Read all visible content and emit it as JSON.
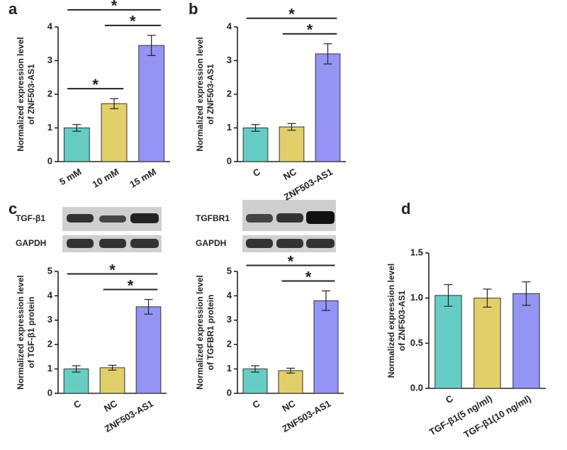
{
  "chart_data": [
    {
      "type": "bar",
      "panel": "a",
      "ylabel": [
        "Normalized expression level",
        "of ZNF503-AS1"
      ],
      "categories": [
        "5 mM",
        "10 mM",
        "15 mM"
      ],
      "values": [
        1.0,
        1.72,
        3.45
      ],
      "errors": [
        0.1,
        0.15,
        0.3
      ],
      "colors": [
        "#66cdc4",
        "#e3cf6a",
        "#9494f5"
      ],
      "ylim": [
        0,
        4
      ],
      "yticks": [
        0,
        1,
        2,
        3,
        4
      ],
      "significance": [
        {
          "label": "*",
          "groups": [
            "5 mM",
            "10 mM"
          ]
        },
        {
          "label": "*",
          "groups": [
            "10 mM",
            "15 mM"
          ]
        },
        {
          "label": "*",
          "groups": [
            "5 mM",
            "15 mM"
          ]
        }
      ]
    },
    {
      "type": "bar",
      "panel": "b",
      "ylabel": [
        "Normalized expression level",
        "of ZNF503-AS1"
      ],
      "categories": [
        "C",
        "NC",
        "ZNF503-AS1"
      ],
      "values": [
        1.0,
        1.03,
        3.2
      ],
      "errors": [
        0.1,
        0.1,
        0.3
      ],
      "colors": [
        "#66cdc4",
        "#e3cf6a",
        "#9494f5"
      ],
      "ylim": [
        0,
        4
      ],
      "yticks": [
        0,
        1,
        2,
        3,
        4
      ],
      "significance": [
        {
          "label": "*",
          "groups": [
            "NC",
            "ZNF503-AS1"
          ]
        },
        {
          "label": "*",
          "groups": [
            "C",
            "ZNF503-AS1"
          ]
        }
      ]
    },
    {
      "type": "bar",
      "panel": "c",
      "ylabel": [
        "Normalized expression level",
        "of TGF-β1 protein"
      ],
      "blot_labels": [
        "TGF-β1",
        "GAPDH"
      ],
      "categories": [
        "C",
        "NC",
        "ZNF503-AS1"
      ],
      "values": [
        1.0,
        1.05,
        3.55
      ],
      "errors": [
        0.13,
        0.1,
        0.3
      ],
      "colors": [
        "#66cdc4",
        "#e3cf6a",
        "#9494f5"
      ],
      "ylim": [
        0,
        5
      ],
      "yticks": [
        0,
        1,
        2,
        3,
        4,
        5
      ],
      "significance": [
        {
          "label": "*",
          "groups": [
            "NC",
            "ZNF503-AS1"
          ]
        },
        {
          "label": "*",
          "groups": [
            "C",
            "ZNF503-AS1"
          ]
        }
      ]
    },
    {
      "type": "bar",
      "ylabel": [
        "Normalized expression level",
        "of TGFBR1 protein"
      ],
      "blot_labels": [
        "TGFBR1",
        "GAPDH"
      ],
      "categories": [
        "C",
        "NC",
        "ZNF503-AS1"
      ],
      "values": [
        1.0,
        0.93,
        3.8
      ],
      "errors": [
        0.13,
        0.1,
        0.4
      ],
      "colors": [
        "#66cdc4",
        "#e3cf6a",
        "#9494f5"
      ],
      "ylim": [
        0,
        5
      ],
      "yticks": [
        0,
        1,
        2,
        3,
        4,
        5
      ],
      "significance": [
        {
          "label": "*",
          "groups": [
            "NC",
            "ZNF503-AS1"
          ]
        },
        {
          "label": "*",
          "groups": [
            "C",
            "ZNF503-AS1"
          ]
        }
      ]
    },
    {
      "type": "bar",
      "panel": "d",
      "ylabel": [
        "Normalized expression level",
        "of ZNF503-AS1"
      ],
      "categories": [
        "C",
        "TGF-β1(5 ng/ml)",
        "TGF-β1(10 ng/ml)"
      ],
      "values": [
        1.03,
        1.0,
        1.05
      ],
      "errors": [
        0.12,
        0.1,
        0.13
      ],
      "colors": [
        "#66cdc4",
        "#e3cf6a",
        "#9494f5"
      ],
      "ylim": [
        0,
        1.5
      ],
      "yticks": [
        {
          "value": 0,
          "label": "0.0"
        },
        0.5,
        {
          "value": 1,
          "label": "1.0"
        },
        1.5
      ]
    }
  ]
}
